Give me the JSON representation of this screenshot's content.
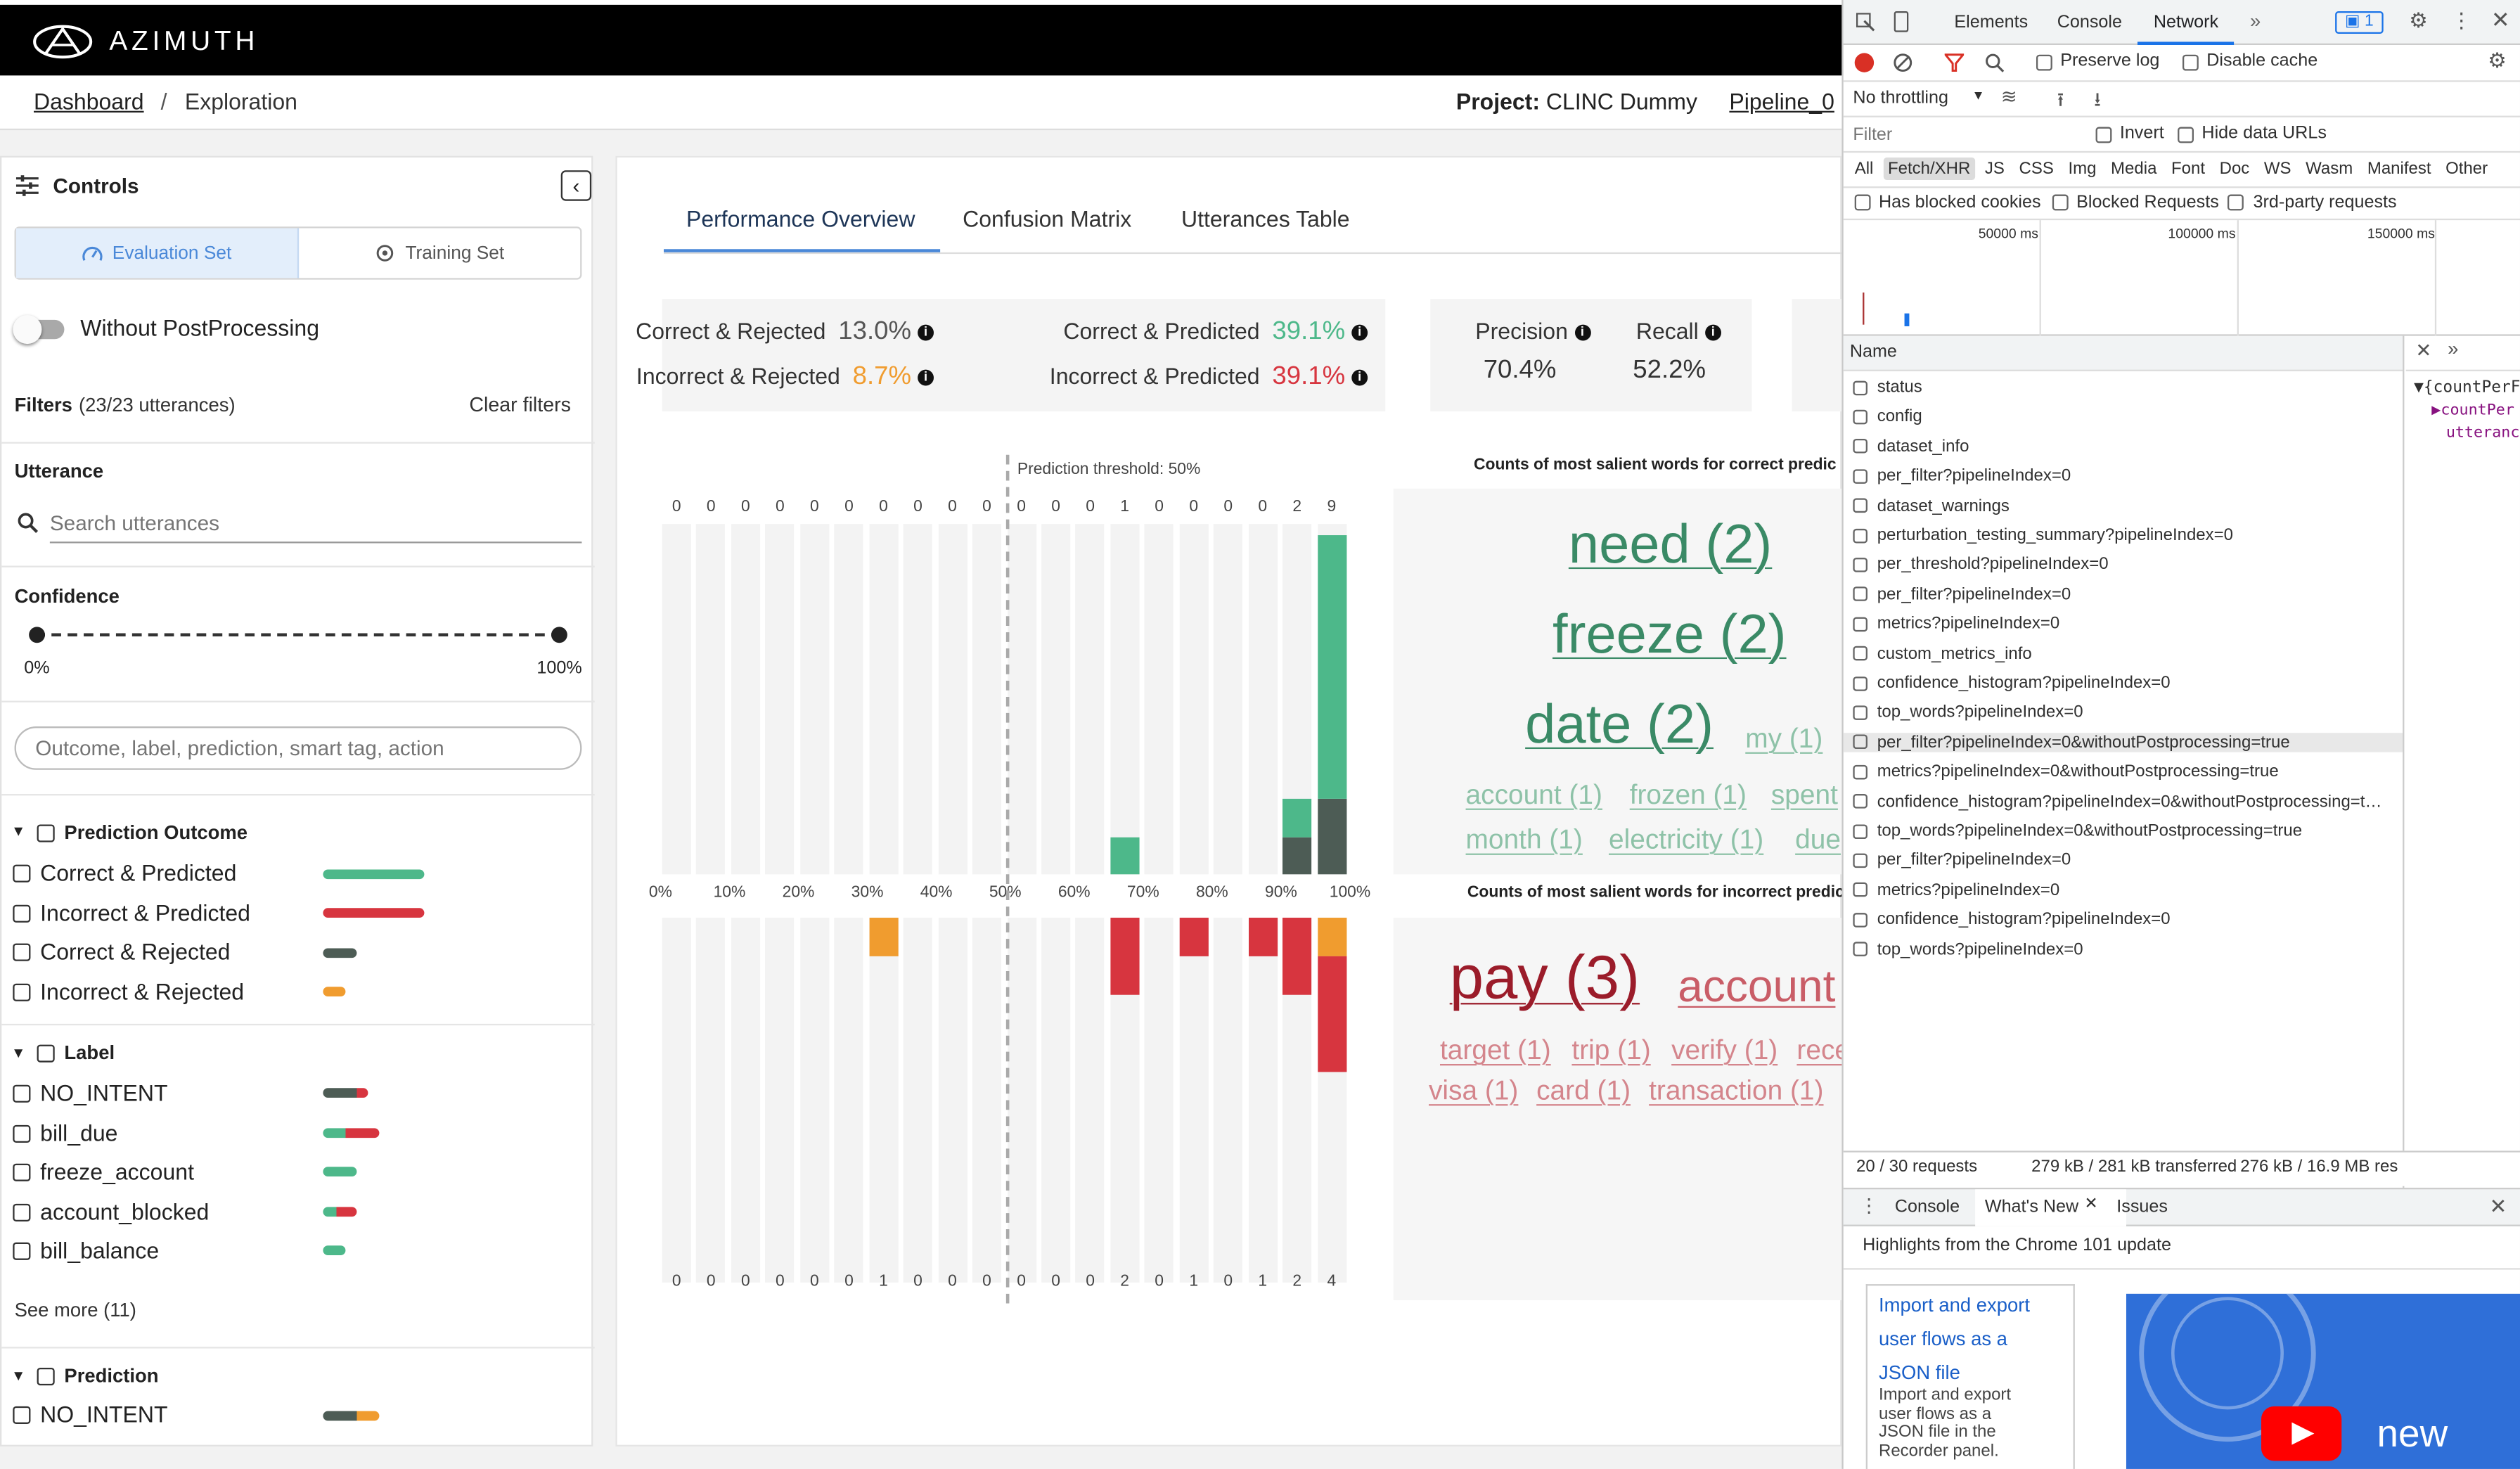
{
  "app": {
    "brand": "AZIMUTH"
  },
  "breadcrumb": {
    "home": "Dashboard",
    "separator": "/",
    "current": "Exploration",
    "project_label": "Project:",
    "project_value": "CLINC Dummy",
    "pipeline": "Pipeline_0"
  },
  "sidebar": {
    "title": "Controls",
    "dataset_tabs": [
      "Evaluation Set",
      "Training Set"
    ],
    "toggle_label": "Without PostProcessing",
    "filters_label": "Filters",
    "filters_count": "(23/23 utterances)",
    "clear_filters": "Clear filters",
    "utterance_label": "Utterance",
    "search_placeholder": "Search utterances",
    "confidence_label": "Confidence",
    "confidence_min": "0%",
    "confidence_max": "100%",
    "combined_placeholder": "Outcome, label, prediction, smart tag, action",
    "outcome_title": "Prediction Outcome",
    "outcomes": [
      "Correct & Predicted",
      "Incorrect & Predicted",
      "Correct & Rejected",
      "Incorrect & Rejected"
    ],
    "label_title": "Label",
    "labels": [
      "NO_INTENT",
      "bill_due",
      "freeze_account",
      "account_blocked",
      "bill_balance"
    ],
    "see_more": "See more (11)",
    "prediction_title": "Prediction",
    "predictions": [
      "NO_INTENT"
    ]
  },
  "main": {
    "tabs": [
      "Performance Overview",
      "Confusion Matrix",
      "Utterances Table"
    ],
    "metrics": {
      "cr_label": "Correct & Rejected",
      "cr_value": "13.0%",
      "cp_label": "Correct & Predicted",
      "cp_value": "39.1%",
      "ir_label": "Incorrect & Rejected",
      "ir_value": "8.7%",
      "ip_label": "Incorrect & Predicted",
      "ip_value": "39.1%",
      "precision_label": "Precision",
      "precision_value": "70.4%",
      "recall_label": "Recall",
      "recall_value": "52.2%"
    },
    "threshold_label": "Prediction threshold: 50%",
    "correct_words_title": "Counts of most salient words for correct predic",
    "incorrect_words_title": "Counts of most salient words for incorrect predic",
    "correct_words": [
      "need (2)",
      "freeze (2)",
      "date (2)",
      "my (1)",
      "account (1)",
      "frozen (1)",
      "spent",
      "month (1)",
      "electricity (1)",
      "due"
    ],
    "incorrect_words": [
      "pay (3)",
      "account",
      "target (1)",
      "trip (1)",
      "verify (1)",
      "rece",
      "visa (1)",
      "card (1)",
      "transaction (1)"
    ]
  },
  "chart_data": {
    "type": "bar",
    "title": "",
    "x_ticks": [
      "0%",
      "10%",
      "20%",
      "30%",
      "40%",
      "50%",
      "60%",
      "70%",
      "80%",
      "90%",
      "100%"
    ],
    "threshold": 0.5,
    "bins": 20,
    "correct_counts": [
      0,
      0,
      0,
      0,
      0,
      0,
      0,
      0,
      0,
      0,
      0,
      0,
      0,
      1,
      0,
      0,
      0,
      0,
      2,
      9
    ],
    "incorrect_counts": [
      0,
      0,
      0,
      0,
      0,
      0,
      1,
      0,
      0,
      0,
      0,
      0,
      0,
      2,
      0,
      1,
      0,
      1,
      2,
      4
    ],
    "correct_series": [
      {
        "name": "Correct & Predicted",
        "color": "#4db88a",
        "values": [
          0,
          0,
          0,
          0,
          0,
          0,
          0,
          0,
          0,
          0,
          0,
          0,
          0,
          1,
          0,
          0,
          0,
          0,
          1,
          7
        ]
      },
      {
        "name": "Correct & Rejected",
        "color": "#4d5c55",
        "values": [
          0,
          0,
          0,
          0,
          0,
          0,
          0,
          0,
          0,
          0,
          0,
          0,
          0,
          0,
          0,
          0,
          0,
          0,
          1,
          2
        ]
      }
    ],
    "incorrect_series": [
      {
        "name": "Incorrect & Rejected",
        "color": "#f09c2f",
        "values": [
          0,
          0,
          0,
          0,
          0,
          0,
          1,
          0,
          0,
          0,
          0,
          0,
          0,
          0,
          0,
          0,
          0,
          0,
          0,
          1
        ]
      },
      {
        "name": "Incorrect & Predicted",
        "color": "#d7353f",
        "values": [
          0,
          0,
          0,
          0,
          0,
          0,
          0,
          0,
          0,
          0,
          0,
          0,
          0,
          2,
          0,
          1,
          0,
          1,
          2,
          3
        ]
      }
    ]
  },
  "devtools": {
    "tabs": [
      "Elements",
      "Console",
      "Network"
    ],
    "issues_badge": "1",
    "preserve_log": "Preserve log",
    "disable_cache": "Disable cache",
    "throttling": "No throttling",
    "filter_placeholder": "Filter",
    "invert": "Invert",
    "hide_data_urls": "Hide data URLs",
    "type_filters": [
      "All",
      "Fetch/XHR",
      "JS",
      "CSS",
      "Img",
      "Media",
      "Font",
      "Doc",
      "WS",
      "Wasm",
      "Manifest",
      "Other"
    ],
    "blocked_cookies": "Has blocked cookies",
    "blocked_requests": "Blocked Requests",
    "third_party": "3rd-party requests",
    "timeline": [
      "50000 ms",
      "100000 ms",
      "150000 ms"
    ],
    "name_header": "Name",
    "requests": [
      "status",
      "config",
      "dataset_info",
      "per_filter?pipelineIndex=0",
      "dataset_warnings",
      "perturbation_testing_summary?pipelineIndex=0",
      "per_threshold?pipelineIndex=0",
      "per_filter?pipelineIndex=0",
      "metrics?pipelineIndex=0",
      "custom_metrics_info",
      "confidence_histogram?pipelineIndex=0",
      "top_words?pipelineIndex=0",
      "per_filter?pipelineIndex=0&withoutPostprocessing=true",
      "metrics?pipelineIndex=0&withoutPostprocessing=true",
      "confidence_histogram?pipelineIndex=0&withoutPostprocessing=t…",
      "top_words?pipelineIndex=0&withoutPostprocessing=true",
      "per_filter?pipelineIndex=0",
      "metrics?pipelineIndex=0",
      "confidence_histogram?pipelineIndex=0",
      "top_words?pipelineIndex=0"
    ],
    "preview_lines": [
      "{countPerF",
      "countPer",
      "utteranc"
    ],
    "status_requests": "20 / 30 requests",
    "status_transferred": "279 kB / 281 kB transferred",
    "status_resources": "276 kB / 16.9 MB res",
    "drawer_tabs": [
      "Console",
      "What's New",
      "Issues"
    ],
    "highlights": "Highlights from the Chrome 101 update",
    "news_link": "Import and export user flows as a JSON file",
    "news_desc": "Import and export user flows as a JSON file in the Recorder panel.",
    "video_text": "new"
  }
}
